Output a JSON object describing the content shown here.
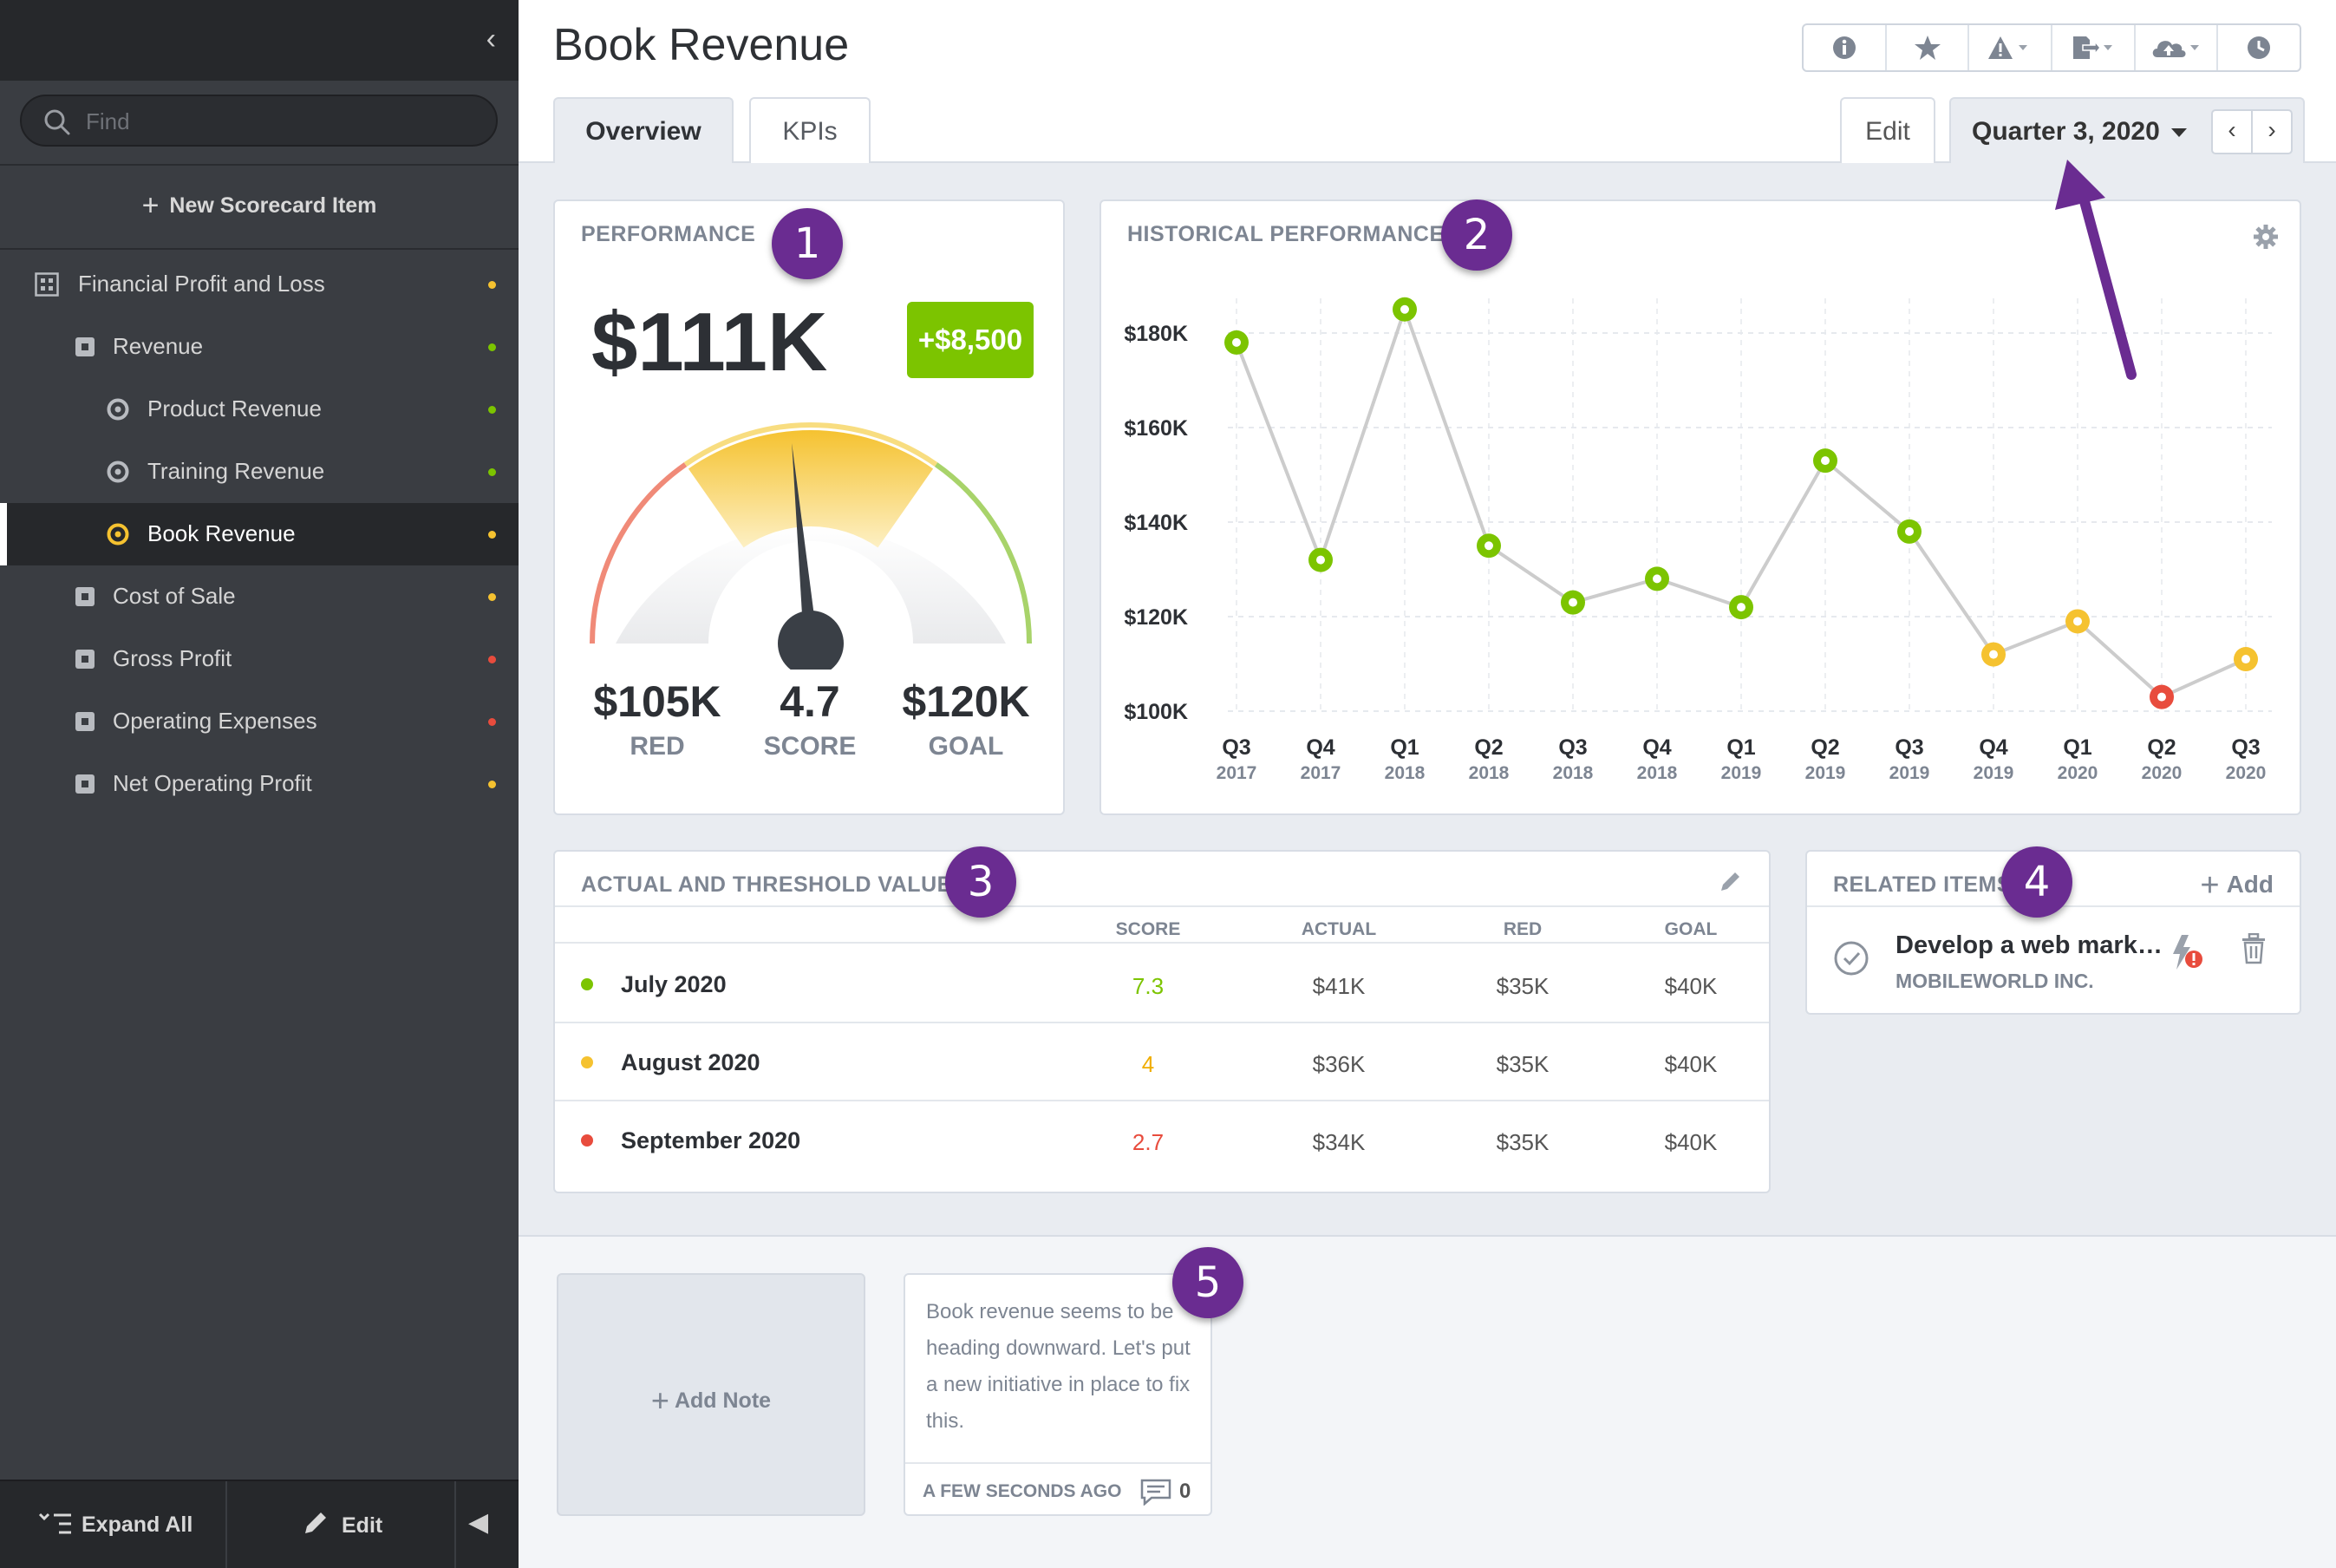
{
  "sidebar": {
    "search_placeholder": "Find",
    "new_item_label": "New Scorecard Item",
    "items": [
      {
        "label": "Financial Profit and Loss",
        "status": "#f5c230"
      },
      {
        "label": "Revenue",
        "status": "#7cc400"
      },
      {
        "label": "Product Revenue",
        "status": "#7cc400"
      },
      {
        "label": "Training Revenue",
        "status": "#7cc400"
      },
      {
        "label": "Book Revenue",
        "status": "#f5c230"
      },
      {
        "label": "Cost of Sale",
        "status": "#f5c230"
      },
      {
        "label": "Gross Profit",
        "status": "#e84c3d"
      },
      {
        "label": "Operating Expenses",
        "status": "#e84c3d"
      },
      {
        "label": "Net Operating Profit",
        "status": "#f5c230"
      }
    ],
    "expand_label": "Expand All",
    "edit_label": "Edit"
  },
  "header": {
    "title": "Book Revenue",
    "tabs": [
      "Overview",
      "KPIs"
    ],
    "edit_label": "Edit",
    "period": "Quarter 3, 2020",
    "toolbar_icons": [
      "info-icon",
      "star-icon",
      "warning-icon",
      "export-icon",
      "cloud-upload-icon",
      "clock-icon"
    ]
  },
  "badges": [
    "1",
    "2",
    "3",
    "4",
    "5"
  ],
  "performance": {
    "title": "PERFORMANCE",
    "value": "$111K",
    "delta": "+$8,500",
    "red_value": "$105K",
    "red_label": "RED",
    "score_value": "4.7",
    "score_label": "SCORE",
    "goal_value": "$120K",
    "goal_label": "GOAL",
    "score": 4.7,
    "score_max": 10
  },
  "chart_data": {
    "type": "line",
    "title": "HISTORICAL PERFORMANCE",
    "categories": [
      "Q3 2017",
      "Q4 2017",
      "Q1 2018",
      "Q2 2018",
      "Q3 2018",
      "Q4 2018",
      "Q1 2019",
      "Q2 2019",
      "Q3 2019",
      "Q4 2019",
      "Q1 2020",
      "Q2 2020",
      "Q3 2020"
    ],
    "tick_quarters": [
      "Q3",
      "Q4",
      "Q1",
      "Q2",
      "Q3",
      "Q4",
      "Q1",
      "Q2",
      "Q3",
      "Q4",
      "Q1",
      "Q2",
      "Q3"
    ],
    "tick_years": [
      "2017",
      "2017",
      "2018",
      "2018",
      "2018",
      "2018",
      "2019",
      "2019",
      "2019",
      "2019",
      "2020",
      "2020",
      "2020"
    ],
    "values": [
      178000,
      132000,
      185000,
      135000,
      123000,
      128000,
      122000,
      153000,
      138000,
      112000,
      119000,
      103000,
      111000
    ],
    "point_status": [
      "green",
      "green",
      "green",
      "green",
      "green",
      "green",
      "green",
      "green",
      "green",
      "yellow",
      "yellow",
      "red",
      "yellow"
    ],
    "ylim": [
      100000,
      180000
    ],
    "yticks": [
      100000,
      120000,
      140000,
      160000,
      180000
    ],
    "ytick_labels": [
      "$100K",
      "$120K",
      "$140K",
      "$160K",
      "$180K"
    ],
    "grid": true,
    "colors": {
      "green": "#7cc400",
      "yellow": "#f5c230",
      "red": "#e84c3d",
      "line": "#cccccc"
    }
  },
  "actual_threshold": {
    "title": "ACTUAL AND THRESHOLD VALUES",
    "columns": [
      "SCORE",
      "ACTUAL",
      "RED",
      "GOAL"
    ],
    "rows": [
      {
        "period": "July 2020",
        "score": "7.3",
        "actual": "$41K",
        "red": "$35K",
        "goal": "$40K",
        "color": "#7cc400"
      },
      {
        "period": "August 2020",
        "score": "4",
        "actual": "$36K",
        "red": "$35K",
        "goal": "$40K",
        "color": "#f5c230"
      },
      {
        "period": "September 2020",
        "score": "2.7",
        "actual": "$34K",
        "red": "$35K",
        "goal": "$40K",
        "color": "#e84c3d"
      }
    ]
  },
  "related": {
    "title": "RELATED ITEMS",
    "add_label": "Add",
    "item_name": "Develop a web marke...",
    "item_org": "MOBILEWORLD INC."
  },
  "notes": {
    "add_label": "Add Note",
    "note_text": "Book revenue seems to be heading downward. Let's put a new initiative in place to fix this.",
    "note_time": "A FEW SECONDS AGO",
    "comment_count": "0"
  }
}
